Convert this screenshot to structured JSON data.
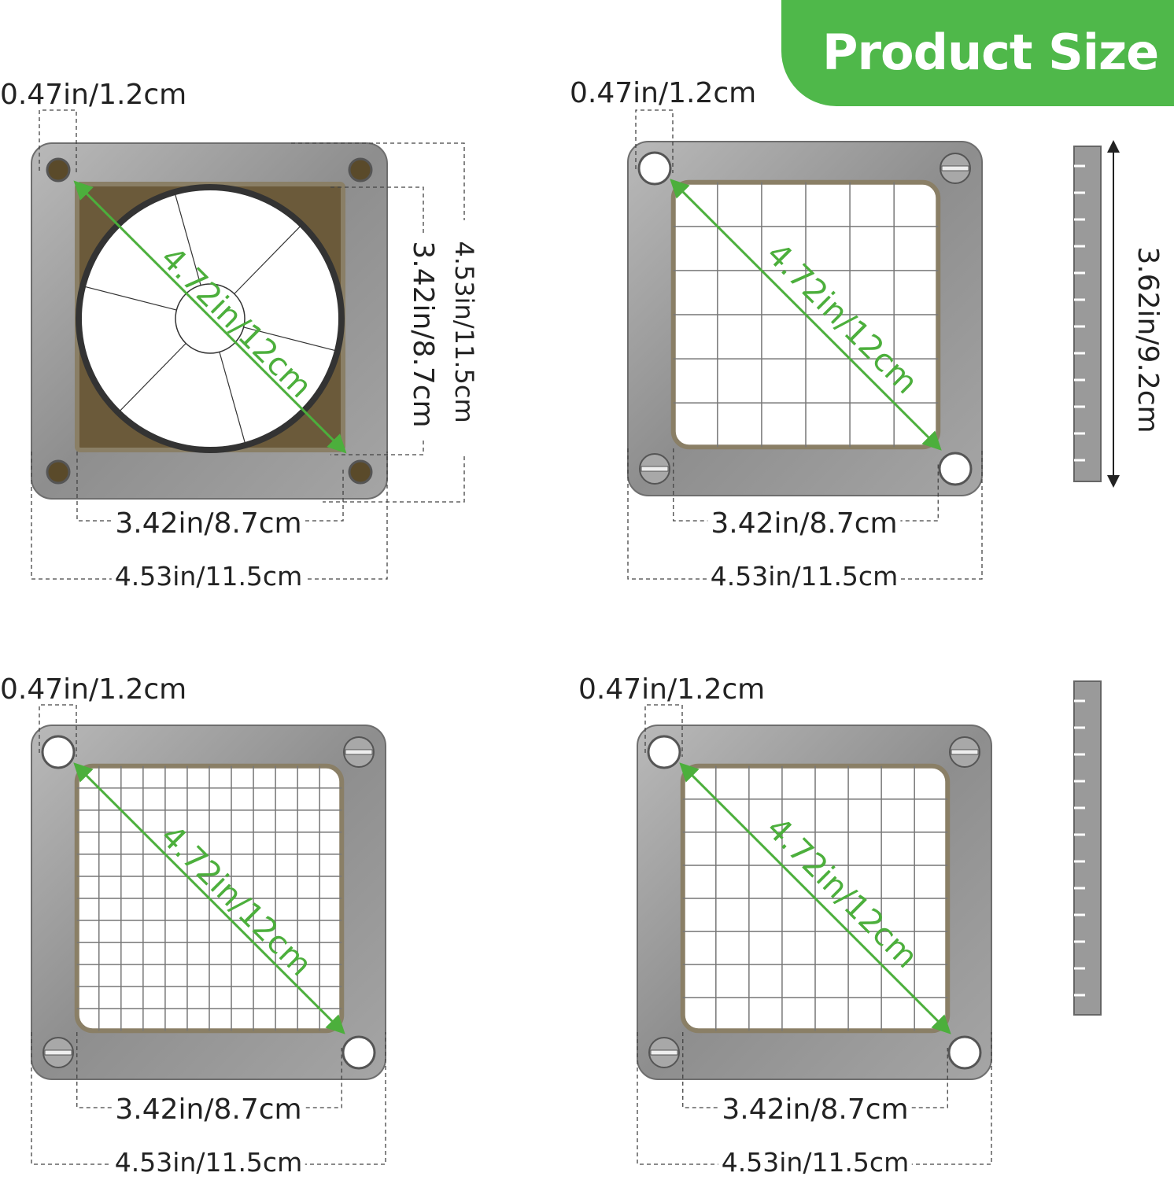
{
  "banner": {
    "title": "Product Size",
    "color": "#4fb84a"
  },
  "accent_color": "#4caf3c",
  "panels": [
    {
      "type": "circular-wedge-blade",
      "hole": "0.47in/1.2cm",
      "inner": "3.42in/8.7cm",
      "outer": "4.53in/11.5cm",
      "diagonal": "4.72in/12cm",
      "inner_vertical": "3.42in/8.7cm",
      "outer_vertical": "4.53in/11.5cm"
    },
    {
      "type": "dicer-grid",
      "hole": "0.47in/1.2cm",
      "inner": "3.42in/8.7cm",
      "outer": "4.53in/11.5cm",
      "diagonal": "4.72in/12cm",
      "blade_length": "3.62in/9.2cm"
    },
    {
      "type": "dicer-grid-fine",
      "hole": "0.47in/1.2cm",
      "inner": "3.42in/8.7cm",
      "outer": "4.53in/11.5cm",
      "diagonal": "4.72in/12cm"
    },
    {
      "type": "dicer-grid-medium",
      "hole": "0.47in/1.2cm",
      "inner": "3.42in/8.7cm",
      "outer": "4.53in/11.5cm",
      "diagonal": "4.72in/12cm"
    }
  ]
}
